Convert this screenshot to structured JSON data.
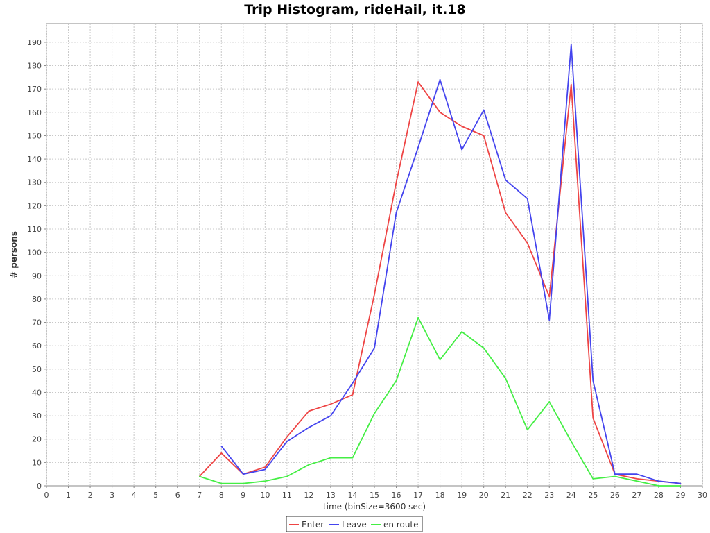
{
  "chart_data": {
    "type": "line",
    "title": "Trip Histogram, rideHail, it.18",
    "xlabel": "time (binSize=3600 sec)",
    "ylabel": "# persons",
    "xlim": [
      0,
      30
    ],
    "ylim": [
      0,
      198
    ],
    "xticks": [
      0,
      1,
      2,
      3,
      4,
      5,
      6,
      7,
      8,
      9,
      10,
      11,
      12,
      13,
      14,
      15,
      16,
      17,
      18,
      19,
      20,
      21,
      22,
      23,
      24,
      25,
      26,
      27,
      28,
      29,
      30
    ],
    "yticks": [
      0,
      10,
      20,
      30,
      40,
      50,
      60,
      70,
      80,
      90,
      100,
      110,
      120,
      130,
      140,
      150,
      160,
      170,
      180,
      190
    ],
    "grid": true,
    "legend_position": "bottom-center",
    "series": [
      {
        "name": "Enter",
        "color": "#ee4444",
        "x": [
          7,
          8,
          9,
          10,
          11,
          12,
          13,
          14,
          15,
          16,
          17,
          18,
          19,
          20,
          21,
          22,
          23,
          24,
          25,
          26,
          27,
          28,
          29
        ],
        "y": [
          4,
          14,
          5,
          8,
          21,
          32,
          35,
          39,
          82,
          130,
          173,
          160,
          154,
          150,
          117,
          104,
          81,
          172,
          29,
          5,
          3,
          2,
          1
        ]
      },
      {
        "name": "Leave",
        "color": "#4444ee",
        "x": [
          8,
          9,
          10,
          11,
          12,
          13,
          14,
          15,
          16,
          17,
          18,
          19,
          20,
          21,
          22,
          23,
          24,
          25,
          26,
          27,
          28,
          29
        ],
        "y": [
          17,
          5,
          7,
          19,
          25,
          30,
          44,
          59,
          117,
          145,
          174,
          144,
          161,
          131,
          123,
          71,
          189,
          45,
          5,
          5,
          2,
          1
        ]
      },
      {
        "name": "en route",
        "color": "#44ee44",
        "x": [
          7,
          8,
          9,
          10,
          11,
          12,
          13,
          14,
          15,
          16,
          17,
          18,
          19,
          20,
          21,
          22,
          23,
          24,
          25,
          26,
          27,
          28,
          29
        ],
        "y": [
          4,
          1,
          1,
          2,
          4,
          9,
          12,
          12,
          31,
          45,
          72,
          54,
          66,
          59,
          46,
          24,
          36,
          19,
          3,
          4,
          2,
          0,
          0
        ]
      }
    ]
  }
}
